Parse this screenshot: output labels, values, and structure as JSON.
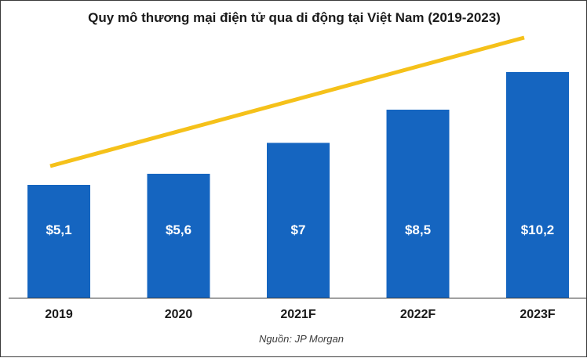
{
  "chart_data": {
    "type": "bar",
    "title": "Quy mô thương mại điện tử qua di động tại Việt Nam (2019-2023)",
    "categories": [
      "2019",
      "2020",
      "2021F",
      "2022F",
      "2023F"
    ],
    "values": [
      5.1,
      5.6,
      7,
      8.5,
      10.2
    ],
    "value_labels": [
      "$5,1",
      "$5,6",
      "$7",
      "$8,5",
      "$10,2"
    ],
    "ylim": [
      0,
      10.2
    ],
    "grid": false,
    "legend": "none",
    "trend_line": true,
    "colors": {
      "bar": "#1565c0",
      "trend": "#f5c11a",
      "bar_label": "#ffffff",
      "axis": "#333333"
    }
  },
  "source": "Nguồn: JP Morgan"
}
